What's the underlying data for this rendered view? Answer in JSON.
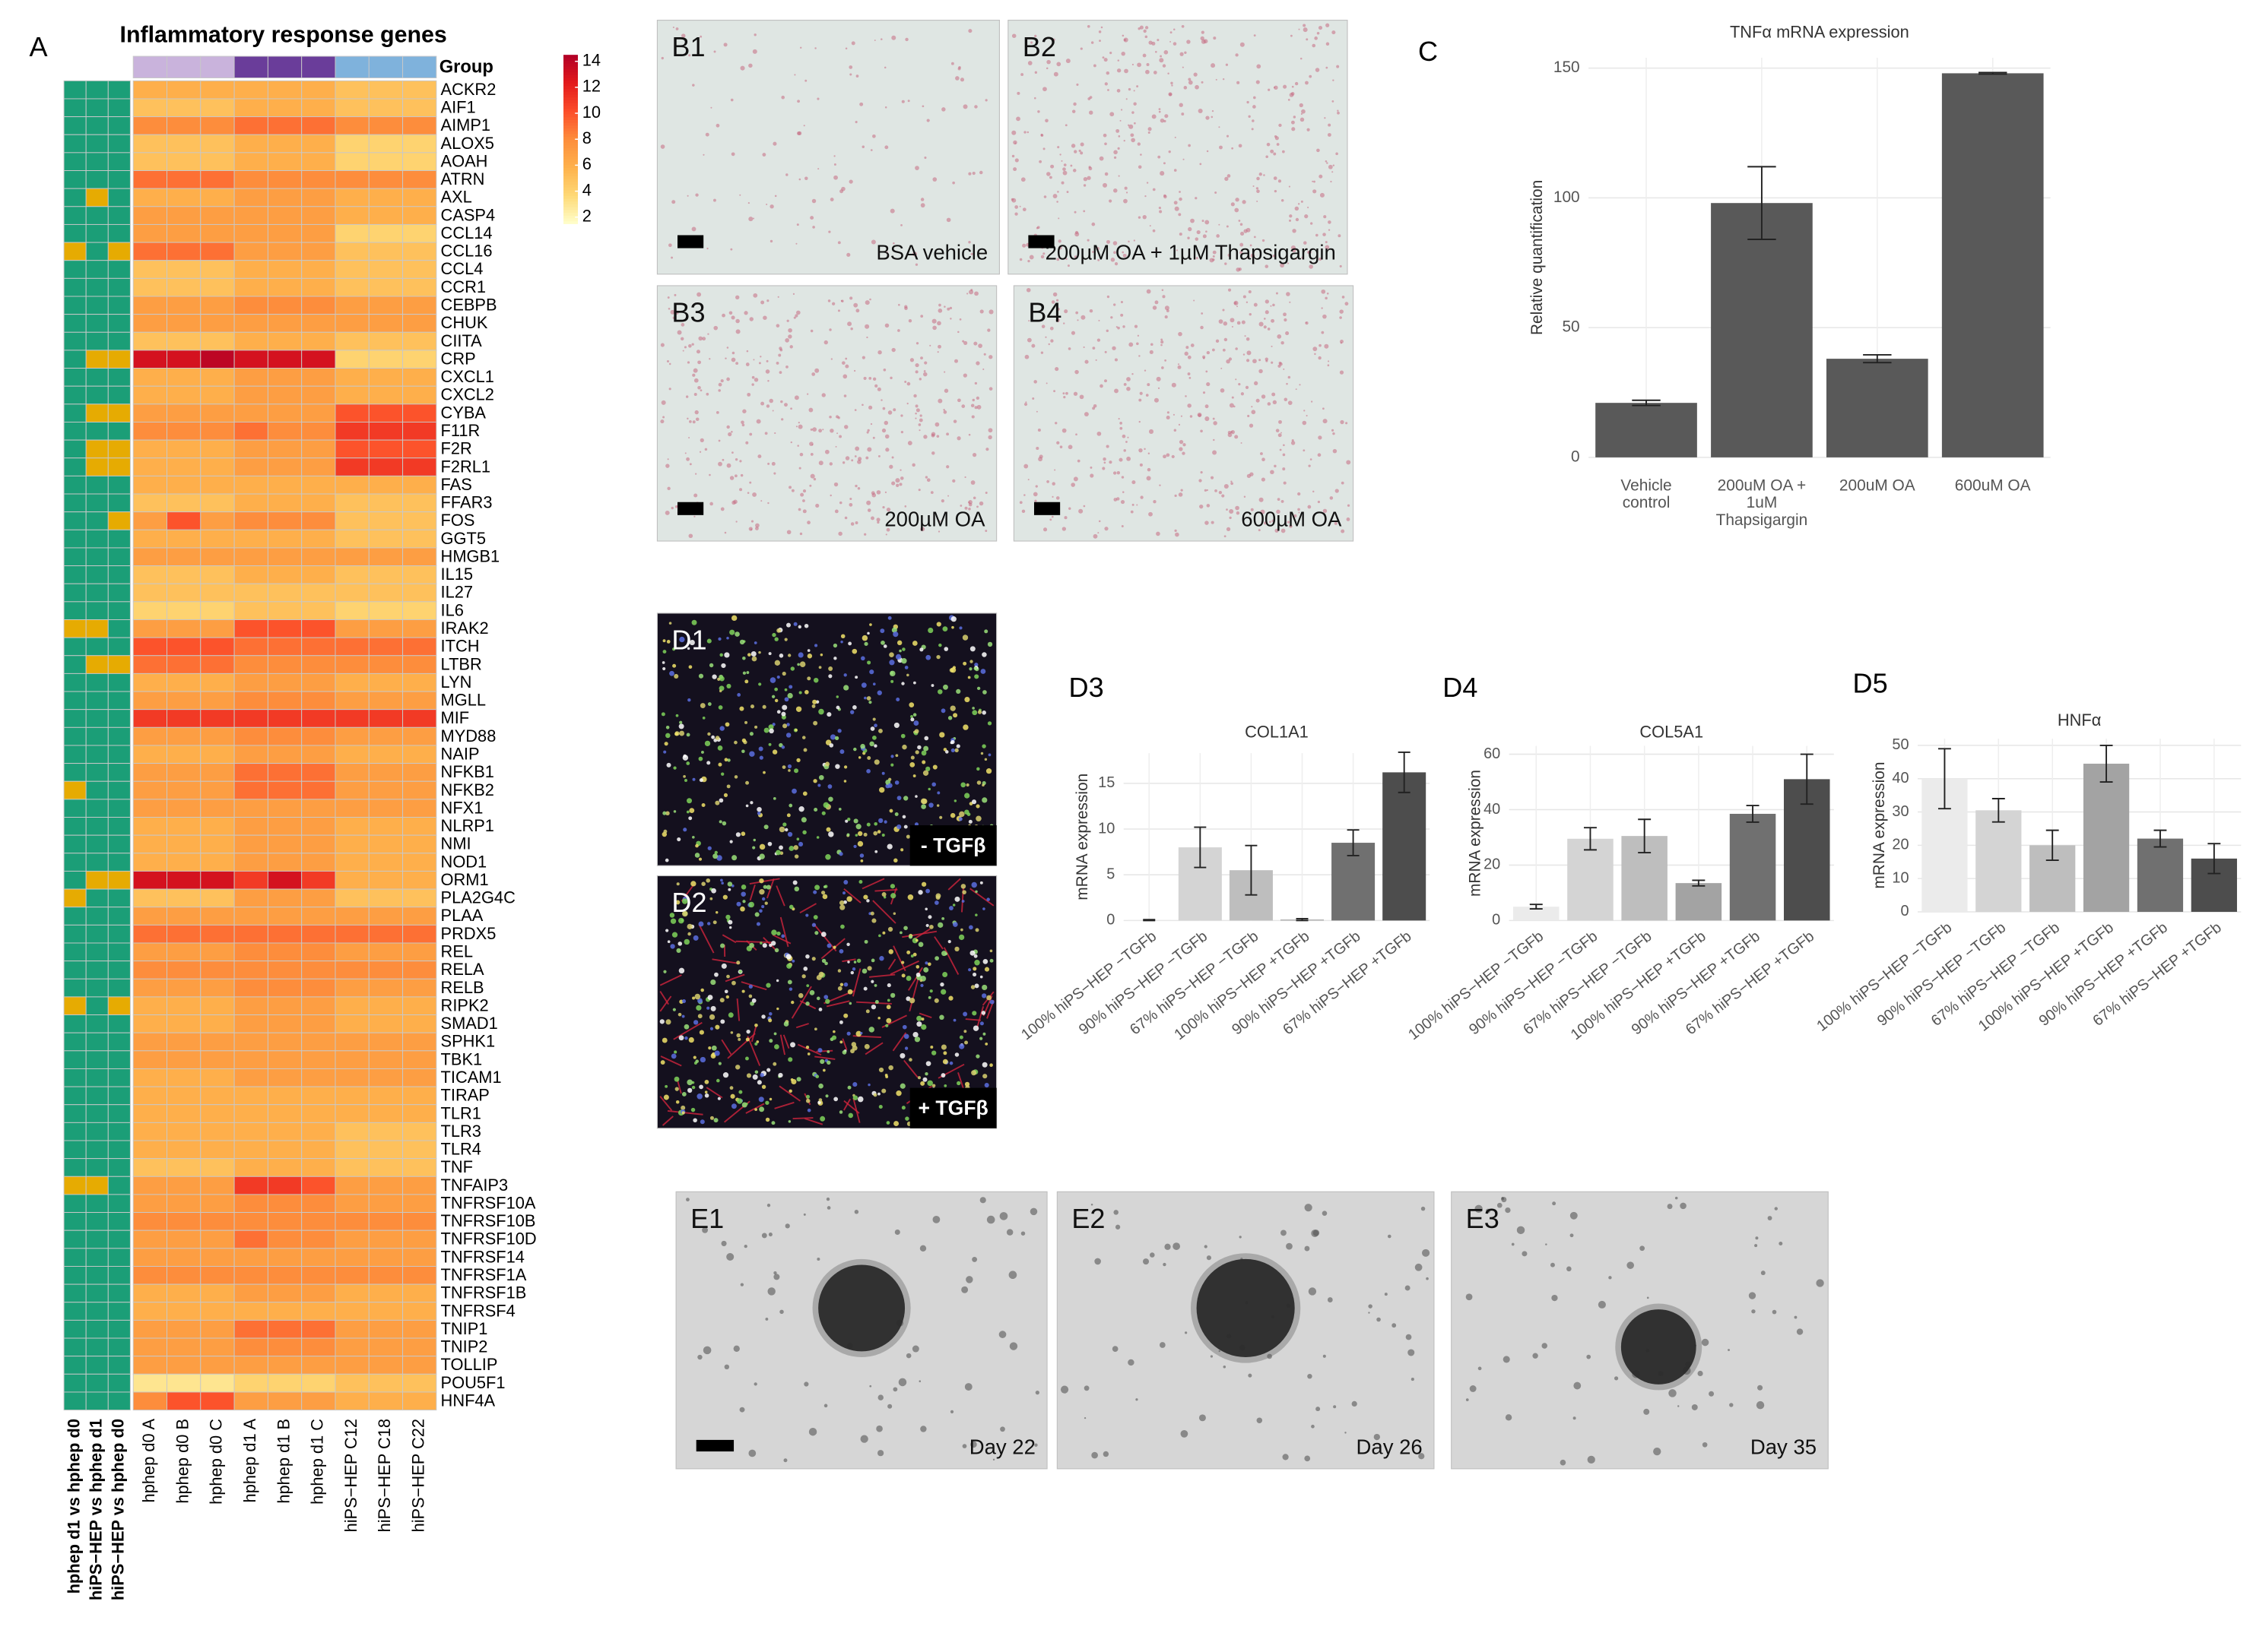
{
  "chart_data": [
    {
      "type": "heatmap",
      "panel": "A",
      "title": "Inflammatory response genes",
      "group_label": "Group",
      "rows": [
        "ACKR2",
        "AIF1",
        "AIMP1",
        "ALOX5",
        "AOAH",
        "ATRN",
        "AXL",
        "CASP4",
        "CCL14",
        "CCL16",
        "CCL4",
        "CCR1",
        "CEBPB",
        "CHUK",
        "CIITA",
        "CRP",
        "CXCL1",
        "CXCL2",
        "CYBA",
        "F11R",
        "F2R",
        "F2RL1",
        "FAS",
        "FFAR3",
        "FOS",
        "GGT5",
        "HMGB1",
        "IL15",
        "IL27",
        "IL6",
        "IRAK2",
        "ITCH",
        "LTBR",
        "LYN",
        "MGLL",
        "MIF",
        "MYD88",
        "NAIP",
        "NFKB1",
        "NFKB2",
        "NFX1",
        "NLRP1",
        "NMI",
        "NOD1",
        "ORM1",
        "PLA2G4C",
        "PLAA",
        "PRDX5",
        "REL",
        "RELA",
        "RELB",
        "RIPK2",
        "SMAD1",
        "SPHK1",
        "TBK1",
        "TICAM1",
        "TIRAP",
        "TLR1",
        "TLR3",
        "TLR4",
        "TNF",
        "TNFAIP3",
        "TNFRSF10A",
        "TNFRSF10B",
        "TNFRSF10D",
        "TNFRSF14",
        "TNFRSF1A",
        "TNFRSF1B",
        "TNFRSF4",
        "TNIP1",
        "TNIP2",
        "TOLLIP",
        "POU5F1",
        "HNF4A"
      ],
      "columns": [
        "hphep d0 A",
        "hphep d0 B",
        "hphep d0 C",
        "hphep d1 A",
        "hphep d1 B",
        "hphep d1 C",
        "hiPS−HEP C12",
        "hiPS−HEP C18",
        "hiPS−HEP C22"
      ],
      "group_colors": [
        "#c9b3dc",
        "#c9b3dc",
        "#c9b3dc",
        "#6a3d9a",
        "#6a3d9a",
        "#6a3d9a",
        "#7fb2dc",
        "#7fb2dc",
        "#7fb2dc"
      ],
      "values": [
        [
          6,
          6,
          6,
          6,
          6,
          6,
          5,
          5,
          5
        ],
        [
          5,
          5,
          5,
          6,
          6,
          6,
          5,
          5,
          5
        ],
        [
          8,
          8,
          8,
          9,
          9,
          9,
          8,
          8,
          8
        ],
        [
          5,
          5,
          5,
          6,
          6,
          6,
          4,
          4,
          4
        ],
        [
          5,
          5,
          5,
          6,
          6,
          6,
          4,
          4,
          4
        ],
        [
          9,
          9,
          9,
          8,
          8,
          8,
          8,
          8,
          8
        ],
        [
          6,
          6,
          6,
          7,
          7,
          7,
          6,
          6,
          6
        ],
        [
          7,
          7,
          7,
          7,
          7,
          7,
          6,
          6,
          6
        ],
        [
          7,
          7,
          7,
          7,
          7,
          7,
          4,
          4,
          4
        ],
        [
          9,
          9,
          9,
          7,
          7,
          7,
          5,
          5,
          5
        ],
        [
          5,
          5,
          5,
          6,
          6,
          6,
          5,
          5,
          5
        ],
        [
          5,
          5,
          5,
          6,
          6,
          6,
          5,
          5,
          5
        ],
        [
          7,
          7,
          7,
          8,
          8,
          8,
          7,
          7,
          7
        ],
        [
          7,
          7,
          7,
          7,
          7,
          7,
          7,
          7,
          7
        ],
        [
          5,
          5,
          5,
          6,
          6,
          6,
          5,
          5,
          5
        ],
        [
          13,
          13,
          14,
          13,
          13,
          13,
          4,
          4,
          4
        ],
        [
          6,
          6,
          6,
          7,
          7,
          7,
          6,
          6,
          6
        ],
        [
          6,
          6,
          6,
          7,
          7,
          7,
          6,
          6,
          6
        ],
        [
          7,
          7,
          7,
          7,
          7,
          7,
          10,
          10,
          10
        ],
        [
          8,
          8,
          8,
          9,
          8,
          8,
          11,
          11,
          11
        ],
        [
          6,
          6,
          6,
          7,
          7,
          7,
          10,
          10,
          10
        ],
        [
          6,
          6,
          6,
          7,
          7,
          7,
          11,
          11,
          11
        ],
        [
          6,
          6,
          6,
          6,
          6,
          6,
          6,
          6,
          6
        ],
        [
          5,
          5,
          5,
          6,
          6,
          6,
          5,
          5,
          5
        ],
        [
          7,
          10,
          7,
          8,
          8,
          8,
          5,
          5,
          5
        ],
        [
          6,
          6,
          6,
          6,
          6,
          6,
          5,
          5,
          5
        ],
        [
          7,
          7,
          7,
          7,
          7,
          7,
          7,
          7,
          7
        ],
        [
          5,
          5,
          5,
          6,
          6,
          6,
          5,
          5,
          5
        ],
        [
          5,
          5,
          5,
          5,
          5,
          5,
          5,
          5,
          5
        ],
        [
          4,
          4,
          4,
          5,
          5,
          5,
          4,
          4,
          4
        ],
        [
          7,
          7,
          7,
          10,
          10,
          10,
          7,
          7,
          7
        ],
        [
          10,
          10,
          10,
          9,
          9,
          9,
          9,
          9,
          9
        ],
        [
          9,
          9,
          9,
          8,
          8,
          8,
          8,
          8,
          8
        ],
        [
          6,
          6,
          6,
          7,
          7,
          7,
          6,
          6,
          6
        ],
        [
          7,
          7,
          7,
          8,
          8,
          8,
          7,
          7,
          7
        ],
        [
          11,
          11,
          11,
          11,
          11,
          11,
          11,
          11,
          11
        ],
        [
          7,
          7,
          7,
          8,
          8,
          8,
          7,
          7,
          7
        ],
        [
          6,
          6,
          6,
          7,
          7,
          7,
          6,
          6,
          6
        ],
        [
          7,
          7,
          7,
          9,
          9,
          9,
          7,
          7,
          7
        ],
        [
          7,
          7,
          7,
          9,
          9,
          9,
          7,
          7,
          7
        ],
        [
          7,
          7,
          7,
          7,
          7,
          7,
          7,
          7,
          7
        ],
        [
          6,
          6,
          6,
          7,
          7,
          7,
          6,
          6,
          6
        ],
        [
          6,
          6,
          6,
          7,
          7,
          7,
          6,
          6,
          6
        ],
        [
          6,
          6,
          6,
          7,
          7,
          7,
          6,
          6,
          6
        ],
        [
          13,
          13,
          13,
          11,
          13,
          11,
          6,
          6,
          6
        ],
        [
          5,
          5,
          5,
          7,
          7,
          7,
          5,
          5,
          5
        ],
        [
          7,
          7,
          7,
          7,
          7,
          7,
          7,
          7,
          7
        ],
        [
          9,
          9,
          9,
          9,
          9,
          9,
          9,
          9,
          9
        ],
        [
          7,
          7,
          7,
          8,
          8,
          8,
          7,
          7,
          7
        ],
        [
          8,
          8,
          8,
          8,
          8,
          8,
          8,
          8,
          8
        ],
        [
          7,
          7,
          7,
          8,
          8,
          8,
          7,
          7,
          7
        ],
        [
          6,
          6,
          6,
          7,
          7,
          7,
          6,
          6,
          6
        ],
        [
          6,
          6,
          6,
          7,
          7,
          7,
          6,
          6,
          6
        ],
        [
          7,
          7,
          7,
          7,
          7,
          7,
          7,
          7,
          7
        ],
        [
          7,
          7,
          7,
          7,
          7,
          7,
          7,
          7,
          7
        ],
        [
          6,
          6,
          6,
          7,
          7,
          7,
          7,
          7,
          7
        ],
        [
          6,
          6,
          6,
          6,
          6,
          6,
          6,
          6,
          6
        ],
        [
          6,
          6,
          6,
          6,
          6,
          6,
          6,
          6,
          6
        ],
        [
          6,
          6,
          6,
          6,
          6,
          6,
          5,
          5,
          5
        ],
        [
          6,
          6,
          6,
          6,
          6,
          6,
          5,
          5,
          5
        ],
        [
          5,
          5,
          5,
          6,
          6,
          6,
          5,
          5,
          5
        ],
        [
          7,
          7,
          7,
          11,
          11,
          10,
          7,
          7,
          7
        ],
        [
          7,
          7,
          7,
          8,
          8,
          8,
          7,
          7,
          7
        ],
        [
          8,
          8,
          8,
          8,
          8,
          8,
          8,
          8,
          8
        ],
        [
          7,
          7,
          7,
          9,
          8,
          8,
          7,
          7,
          7
        ],
        [
          7,
          7,
          7,
          7,
          7,
          7,
          7,
          7,
          7
        ],
        [
          8,
          8,
          8,
          8,
          8,
          8,
          8,
          8,
          8
        ],
        [
          6,
          6,
          6,
          7,
          7,
          7,
          6,
          6,
          6
        ],
        [
          6,
          6,
          6,
          6,
          6,
          6,
          6,
          6,
          6
        ],
        [
          7,
          7,
          7,
          9,
          9,
          9,
          7,
          7,
          7
        ],
        [
          7,
          7,
          7,
          8,
          8,
          8,
          7,
          7,
          7
        ],
        [
          7,
          7,
          7,
          7,
          7,
          7,
          7,
          7,
          7
        ],
        [
          3,
          3,
          3,
          4,
          4,
          4,
          5,
          5,
          5
        ],
        [
          8,
          10,
          10,
          7,
          7,
          7,
          6,
          6,
          6
        ]
      ],
      "clim": [
        1.5,
        14.5
      ],
      "colorbar_ticks": [
        2,
        4,
        6,
        8,
        10,
        12,
        14
      ],
      "colors": [
        "#ffffcc",
        "#fed976",
        "#feb24c",
        "#fd8d3c",
        "#fc4e2a",
        "#e31a1c",
        "#b10026"
      ],
      "annotation_colors": [
        "#1b9e77",
        "#e6ab02"
      ],
      "annotations": [
        {
          "name": "hphep d1 vs hphep d0",
          "values": [
            0,
            0,
            0,
            0,
            0,
            0,
            0,
            0,
            0,
            1,
            0,
            0,
            0,
            0,
            0,
            0,
            0,
            0,
            0,
            0,
            0,
            0,
            0,
            0,
            0,
            0,
            0,
            0,
            0,
            0,
            1,
            0,
            0,
            0,
            0,
            0,
            0,
            0,
            0,
            1,
            0,
            0,
            0,
            0,
            0,
            1,
            0,
            0,
            0,
            0,
            0,
            1,
            0,
            0,
            0,
            0,
            0,
            0,
            0,
            0,
            0,
            1,
            0,
            0,
            0,
            0,
            0,
            0,
            0,
            0,
            0,
            0,
            0,
            0
          ]
        },
        {
          "name": "hiPS−HEP vs hphep d1",
          "values": [
            0,
            0,
            0,
            0,
            0,
            0,
            1,
            0,
            0,
            0,
            0,
            0,
            0,
            0,
            0,
            1,
            0,
            0,
            1,
            0,
            1,
            1,
            0,
            0,
            0,
            0,
            0,
            0,
            0,
            0,
            1,
            0,
            1,
            0,
            0,
            0,
            0,
            0,
            0,
            0,
            0,
            0,
            0,
            0,
            1,
            0,
            0,
            0,
            0,
            0,
            0,
            0,
            0,
            0,
            0,
            0,
            0,
            0,
            0,
            0,
            0,
            1,
            0,
            0,
            0,
            0,
            0,
            0,
            0,
            0,
            0,
            0,
            0,
            0
          ]
        },
        {
          "name": "hiPS−HEP vs hphep d0",
          "values": [
            0,
            0,
            0,
            0,
            0,
            0,
            0,
            0,
            0,
            1,
            0,
            0,
            0,
            0,
            0,
            1,
            0,
            0,
            1,
            0,
            1,
            1,
            0,
            0,
            1,
            0,
            0,
            0,
            0,
            0,
            0,
            0,
            1,
            0,
            0,
            0,
            0,
            0,
            0,
            0,
            0,
            0,
            0,
            0,
            1,
            0,
            0,
            0,
            0,
            0,
            0,
            1,
            0,
            0,
            0,
            0,
            0,
            0,
            0,
            0,
            0,
            0,
            0,
            0,
            0,
            0,
            0,
            0,
            0,
            0,
            0,
            0,
            0,
            0
          ]
        }
      ]
    },
    {
      "type": "bar",
      "panel": "C",
      "title": "TNFα mRNA expression",
      "ylabel": "Relative quantification",
      "categories": [
        [
          "Vehicle",
          "control"
        ],
        [
          "200uM OA +",
          "1uM",
          "Thapsigargin"
        ],
        [
          "200uM OA"
        ],
        [
          "600uM OA"
        ]
      ],
      "values": [
        21,
        98,
        38,
        148
      ],
      "errors": [
        1,
        14,
        1.5,
        0.3
      ],
      "color": "#595959",
      "ylim": [
        0,
        154
      ],
      "yticks": [
        0,
        50,
        100,
        150
      ],
      "grid": true
    },
    {
      "type": "bar",
      "panel": "D3",
      "title": "COL1A1",
      "ylabel": "mRNA expression",
      "categories": [
        "100% hiPS−HEP −TGFb",
        "90% hiPS−HEP −TGFb",
        "67% hiPS−HEP −TGFb",
        "100% hiPS−HEP +TGFb",
        "90% hiPS−HEP +TGFb",
        "67% hiPS−HEP +TGFb"
      ],
      "values": [
        0.05,
        8,
        5.5,
        0.1,
        8.5,
        16.2
      ],
      "errors": [
        0.05,
        2.2,
        2.7,
        0.1,
        1.4,
        2.2
      ],
      "colors": [
        "#ebebeb",
        "#d4d4d4",
        "#bebebe",
        "#a3a3a3",
        "#707070",
        "#4d4d4d"
      ],
      "ylim": [
        0,
        18.3
      ],
      "yticks": [
        0,
        5,
        10,
        15
      ],
      "grid": true
    },
    {
      "type": "bar",
      "panel": "D4",
      "title": "COL5A1",
      "ylabel": "mRNA expression",
      "categories": [
        "100% hiPS−HEP −TGFb",
        "90% hiPS−HEP −TGFb",
        "67% hiPS−HEP −TGFb",
        "100% hiPS−HEP +TGFb",
        "90% hiPS−HEP +TGFb",
        "67% hiPS−HEP +TGFb"
      ],
      "values": [
        5,
        29.5,
        30.5,
        13.5,
        38.5,
        51
      ],
      "errors": [
        0.8,
        4,
        6,
        1,
        3,
        9
      ],
      "colors": [
        "#ebebeb",
        "#d4d4d4",
        "#bebebe",
        "#a3a3a3",
        "#707070",
        "#4d4d4d"
      ],
      "ylim": [
        0,
        63
      ],
      "yticks": [
        0,
        20,
        40,
        60
      ],
      "grid": true
    },
    {
      "type": "bar",
      "panel": "D5",
      "title": "HNFα",
      "ylabel": "mRNA expression",
      "categories": [
        "100% hiPS−HEP −TGFb",
        "90% hiPS−HEP −TGFb",
        "67% hiPS−HEP −TGFb",
        "100% hiPS−HEP +TGFb",
        "90% hiPS−HEP +TGFb",
        "67% hiPS−HEP +TGFb"
      ],
      "values": [
        40,
        30.5,
        20,
        44.5,
        22,
        16
      ],
      "errors": [
        9,
        3.5,
        4.5,
        5.5,
        2.5,
        4.5
      ],
      "colors": [
        "#ebebeb",
        "#d4d4d4",
        "#bebebe",
        "#a3a3a3",
        "#707070",
        "#4d4d4d"
      ],
      "ylim": [
        0,
        52
      ],
      "yticks": [
        0,
        10,
        20,
        30,
        40,
        50
      ],
      "grid": true
    }
  ],
  "panels": [
    {
      "label": "B1",
      "caption": "BSA vehicle"
    },
    {
      "label": "B2",
      "caption": "200µM OA + 1µM Thapsigargin"
    },
    {
      "label": "B3",
      "caption": "200µM OA"
    },
    {
      "label": "B4",
      "caption": "600µM OA"
    },
    {
      "label": "D1",
      "caption": "- TGFβ"
    },
    {
      "label": "D2",
      "caption": "+ TGFβ"
    },
    {
      "label": "E1",
      "caption": "Day 22"
    },
    {
      "label": "E2",
      "caption": "Day 26"
    },
    {
      "label": "E3",
      "caption": "Day 35"
    }
  ]
}
